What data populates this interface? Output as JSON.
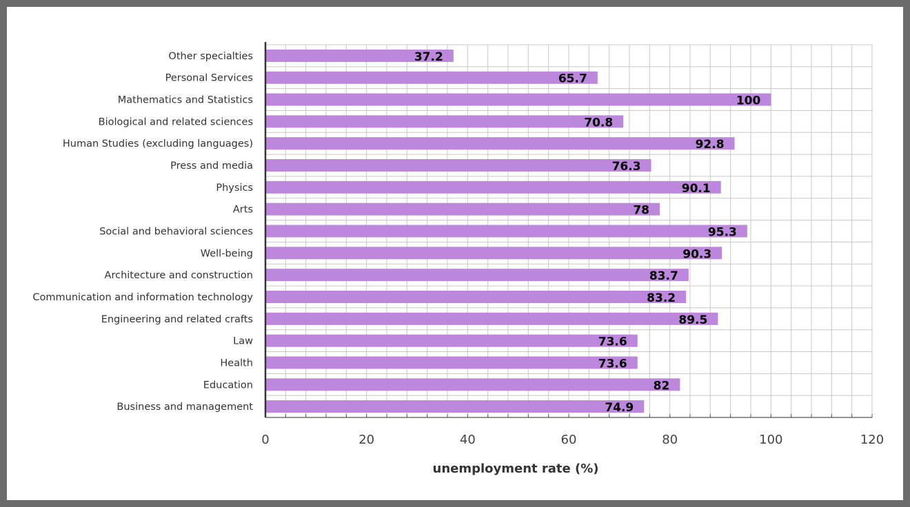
{
  "chart_data": {
    "type": "bar",
    "orientation": "horizontal",
    "categories": [
      "Other specialties",
      "Personal Services",
      "Mathematics and Statistics",
      "Biological and related sciences",
      "Human Studies (excluding languages)",
      "Press and media",
      "Physics",
      "Arts",
      "Social and behavioral sciences",
      "Well-being",
      "Architecture and construction",
      "Communication and information technology",
      "Engineering and related crafts",
      "Law",
      "Health",
      "Education",
      "Business and management"
    ],
    "values": [
      37.2,
      65.7,
      100,
      70.8,
      92.8,
      76.3,
      90.1,
      78,
      95.3,
      90.3,
      83.7,
      83.2,
      89.5,
      73.6,
      73.6,
      82,
      74.9
    ],
    "data_labels": [
      "37.2",
      "65.7",
      "100",
      "70.8",
      "92.8",
      "76.3",
      "90.1",
      "78",
      "95.3",
      "90.3",
      "83.7",
      "83.2",
      "89.5",
      "73.6",
      "73.6",
      "82",
      "74.9"
    ],
    "title": "",
    "xlabel": "unemployment rate (%)",
    "ylabel": "",
    "xlim": [
      0,
      120
    ],
    "x_ticks": [
      0,
      20,
      40,
      60,
      80,
      100,
      120
    ],
    "x_tick_labels": [
      "0",
      "20",
      "40",
      "60",
      "80",
      "100",
      "120"
    ],
    "grid": true,
    "legend": "none",
    "colors": {
      "bar": "#bc87dc",
      "grid": "#c8c8c8",
      "axis": "#333333",
      "frame": "#6b6b6b"
    }
  }
}
